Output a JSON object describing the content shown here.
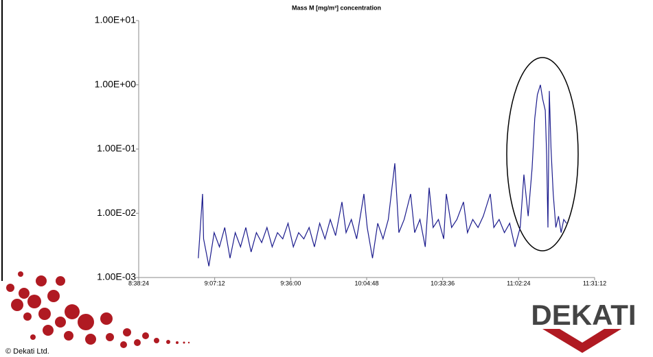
{
  "chart_data": {
    "type": "line",
    "title": "Mass M [mg/m³] concentration",
    "log_scale_y": true,
    "grid": false,
    "xlim": [
      "8:38:24",
      "11:31:12"
    ],
    "xticks": [
      "8:38:24",
      "9:07:12",
      "9:36:00",
      "10:04:48",
      "10:33:36",
      "11:02:24",
      "11:31:12"
    ],
    "ylim": [
      0.001,
      10
    ],
    "yticks": [
      {
        "value": 0.001,
        "label": "1.00E-03"
      },
      {
        "value": 0.01,
        "label": "1.00E-02"
      },
      {
        "value": 0.1,
        "label": "1.00E-01"
      },
      {
        "value": 1,
        "label": "1.00E+00"
      },
      {
        "value": 10,
        "label": "1.00E+01"
      }
    ],
    "x": [
      "9:01:00",
      "9:02:36",
      "9:03:00",
      "9:05:00",
      "9:07:00",
      "9:09:00",
      "9:11:00",
      "9:13:00",
      "9:15:00",
      "9:17:00",
      "9:19:00",
      "9:21:00",
      "9:23:00",
      "9:25:00",
      "9:27:00",
      "9:29:00",
      "9:31:00",
      "9:33:00",
      "9:35:00",
      "9:37:00",
      "9:39:00",
      "9:41:00",
      "9:43:00",
      "9:45:00",
      "9:47:00",
      "9:49:00",
      "9:51:00",
      "9:53:00",
      "9:55:26",
      "9:57:00",
      "9:59:00",
      "10:01:00",
      "10:03:45",
      "10:05:00",
      "10:07:00",
      "10:09:00",
      "10:11:00",
      "10:13:00",
      "10:15:28",
      "10:17:00",
      "10:19:00",
      "10:21:27",
      "10:23:00",
      "10:25:00",
      "10:27:00",
      "10:28:29",
      "10:30:00",
      "10:32:00",
      "10:34:00",
      "10:35:00",
      "10:37:00",
      "10:39:00",
      "10:41:29",
      "10:43:00",
      "10:45:00",
      "10:47:00",
      "10:49:00",
      "10:51:38",
      "10:53:00",
      "10:55:00",
      "10:57:00",
      "10:59:00",
      "11:01:00",
      "11:03:00",
      "11:04:23",
      "11:06:00",
      "11:07:30",
      "11:08:30",
      "11:09:30",
      "11:10:38",
      "11:11:30",
      "11:12:30",
      "11:13:00",
      "11:13:30",
      "11:14:01",
      "11:14:40",
      "11:15:30",
      "11:16:30",
      "11:17:30",
      "11:18:30",
      "11:19:30",
      "11:20:32"
    ],
    "series": [
      {
        "color": "#1a1a8c",
        "values": [
          0.002,
          0.02,
          0.004,
          0.0015,
          0.005,
          0.003,
          0.006,
          0.002,
          0.005,
          0.003,
          0.006,
          0.0025,
          0.005,
          0.0035,
          0.006,
          0.003,
          0.005,
          0.004,
          0.007,
          0.003,
          0.005,
          0.004,
          0.006,
          0.003,
          0.007,
          0.004,
          0.008,
          0.0045,
          0.015,
          0.005,
          0.008,
          0.004,
          0.02,
          0.006,
          0.002,
          0.007,
          0.004,
          0.008,
          0.06,
          0.005,
          0.008,
          0.02,
          0.005,
          0.008,
          0.003,
          0.025,
          0.006,
          0.008,
          0.004,
          0.02,
          0.006,
          0.008,
          0.015,
          0.005,
          0.008,
          0.006,
          0.009,
          0.02,
          0.006,
          0.008,
          0.005,
          0.007,
          0.003,
          0.006,
          0.04,
          0.009,
          0.05,
          0.3,
          0.7,
          1.0,
          0.6,
          0.4,
          0.08,
          0.006,
          0.8,
          0.1,
          0.02,
          0.006,
          0.009,
          0.005,
          0.008,
          0.007
        ]
      }
    ]
  },
  "footer": {
    "logo_text": "DEKATI",
    "copyright": "© Dekati Ltd."
  }
}
